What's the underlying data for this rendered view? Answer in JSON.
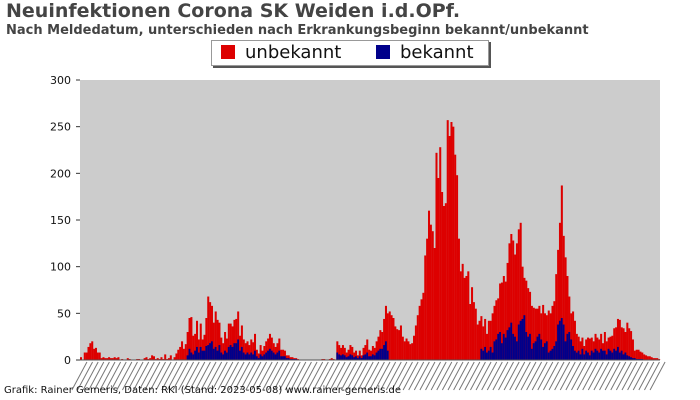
{
  "title": "Neuinfektionen Corona SK Weiden i.d.OPf.",
  "subtitle": "Nach Meldedatum, unterschieden nach Erkrankungsbeginn bekannt/unbekannt",
  "footer": "Grafik: Rainer Gemeris, Daten: RKI (Stand: 2023-05-08) www.rainer-gemeris.de",
  "colors": {
    "unbekannt": "#dd0000",
    "bekannt": "#00008b",
    "plot_background": "#cccccc",
    "page_background": "#ffffff"
  },
  "chart_data": {
    "type": "bar",
    "stacked": true,
    "title": "Neuinfektionen Corona SK Weiden i.d.OPf.",
    "subtitle": "Nach Meldedatum, unterschieden nach Erkrankungsbeginn bekannt/unbekannt",
    "xlabel": "",
    "ylabel": "",
    "ylim": [
      0,
      300
    ],
    "yticks": [
      0,
      50,
      100,
      150,
      200,
      250,
      300
    ],
    "grid": false,
    "legend_position": "top",
    "x_tick_labels_legible": false,
    "categories_note": "x-axis date labels are dense and illegible",
    "series": [
      {
        "name": "unbekannt",
        "color": "#dd0000",
        "values": [
          3,
          0,
          8,
          8,
          14,
          18,
          20,
          12,
          13,
          8,
          8,
          2,
          3,
          2,
          2,
          3,
          2,
          2,
          3,
          2,
          3,
          0,
          1,
          0,
          0,
          2,
          1,
          0,
          0,
          0,
          1,
          1,
          0,
          0,
          2,
          3,
          1,
          2,
          5,
          4,
          1,
          2,
          1,
          3,
          1,
          6,
          1,
          2,
          5,
          0,
          3,
          7,
          11,
          14,
          20,
          12,
          17,
          25,
          33,
          38,
          20,
          18,
          28,
          14,
          25,
          12,
          17,
          30,
          52,
          44,
          38,
          28,
          38,
          33,
          24,
          16,
          12,
          20,
          15,
          25,
          23,
          22,
          25,
          26,
          30,
          16,
          23,
          14,
          12,
          12,
          10,
          14,
          13,
          18,
          7,
          5,
          10,
          6,
          9,
          12,
          13,
          16,
          14,
          10,
          8,
          10,
          13,
          7,
          7,
          6,
          3,
          3,
          2,
          2,
          1,
          1,
          1,
          0,
          0,
          0,
          0,
          0,
          0,
          0,
          0,
          0,
          0,
          0,
          0,
          1,
          1,
          0,
          0,
          1,
          2,
          1,
          0,
          12,
          10,
          8,
          10,
          8,
          5,
          7,
          10,
          9,
          5,
          6,
          3,
          6,
          3,
          8,
          10,
          14,
          7,
          6,
          9,
          8,
          12,
          15,
          20,
          18,
          28,
          38,
          40,
          52,
          48,
          45,
          36,
          33,
          32,
          37,
          25,
          20,
          23,
          20,
          17,
          18,
          26,
          37,
          48,
          58,
          65,
          72,
          112,
          130,
          160,
          145,
          138,
          120,
          222,
          195,
          228,
          180,
          165,
          168,
          257,
          240,
          255,
          250,
          220,
          198,
          130,
          95,
          103,
          88,
          90,
          95,
          60,
          78,
          62,
          55,
          38,
          42,
          35,
          26,
          30,
          20,
          32,
          28,
          42,
          38,
          42,
          38,
          52,
          65,
          62,
          60,
          72,
          90,
          95,
          100,
          88,
          105,
          102,
          105,
          56,
          40,
          55,
          52,
          45,
          46,
          38,
          35,
          30,
          30,
          28,
          45,
          32,
          28,
          45,
          40,
          46,
          48,
          72,
          80,
          105,
          142,
          95,
          90,
          62,
          38,
          28,
          37,
          32,
          20,
          15,
          14,
          12,
          9,
          12,
          16,
          18,
          14,
          12,
          16,
          14,
          14,
          16,
          8,
          20,
          14,
          12,
          15,
          18,
          22,
          25,
          30,
          35,
          25,
          28,
          22,
          35,
          30,
          28,
          20,
          8,
          10,
          10,
          8,
          7,
          6,
          5,
          4,
          4,
          3,
          2,
          2,
          2,
          1
        ]
      },
      {
        "name": "bekannt",
        "color": "#00008b",
        "values": [
          0,
          0,
          0,
          0,
          0,
          0,
          0,
          0,
          0,
          0,
          0,
          0,
          0,
          0,
          0,
          0,
          0,
          0,
          0,
          0,
          0,
          0,
          0,
          0,
          0,
          0,
          0,
          0,
          0,
          0,
          0,
          0,
          0,
          0,
          0,
          0,
          0,
          0,
          0,
          0,
          0,
          0,
          0,
          0,
          0,
          0,
          0,
          0,
          0,
          0,
          0,
          0,
          0,
          0,
          0,
          0,
          0,
          5,
          12,
          8,
          6,
          10,
          14,
          8,
          14,
          10,
          10,
          15,
          16,
          18,
          20,
          12,
          14,
          10,
          16,
          8,
          6,
          10,
          8,
          14,
          16,
          14,
          18,
          18,
          22,
          10,
          14,
          8,
          6,
          8,
          6,
          8,
          6,
          10,
          4,
          2,
          6,
          4,
          6,
          8,
          10,
          12,
          10,
          8,
          6,
          8,
          10,
          4,
          4,
          4,
          2,
          2,
          1,
          1,
          1,
          1,
          0,
          0,
          0,
          0,
          0,
          0,
          0,
          0,
          0,
          0,
          0,
          0,
          0,
          0,
          0,
          0,
          0,
          0,
          0,
          0,
          0,
          8,
          6,
          5,
          6,
          5,
          3,
          4,
          6,
          5,
          3,
          4,
          2,
          4,
          2,
          5,
          6,
          8,
          4,
          4,
          6,
          5,
          8,
          10,
          12,
          12,
          16,
          20,
          10,
          0,
          0,
          0,
          0,
          0,
          0,
          0,
          0,
          0,
          0,
          0,
          0,
          0,
          0,
          0,
          0,
          0,
          0,
          0,
          0,
          0,
          0,
          0,
          0,
          0,
          0,
          0,
          0,
          0,
          0,
          0,
          0,
          0,
          0,
          0,
          0,
          0,
          0,
          0,
          0,
          0,
          0,
          0,
          0,
          0,
          0,
          0,
          0,
          0,
          12,
          10,
          14,
          8,
          10,
          14,
          8,
          20,
          22,
          28,
          30,
          18,
          28,
          24,
          32,
          35,
          40,
          28,
          25,
          20,
          38,
          42,
          44,
          48,
          30,
          25,
          28,
          12,
          18,
          20,
          25,
          28,
          22,
          14,
          18,
          20,
          8,
          10,
          12,
          15,
          20,
          38,
          42,
          45,
          38,
          20,
          28,
          30,
          22,
          15,
          10,
          8,
          10,
          6,
          12,
          6,
          10,
          8,
          5,
          10,
          8,
          12,
          10,
          8,
          12,
          10,
          10,
          6,
          12,
          10,
          8,
          12,
          10,
          14,
          8,
          10,
          6,
          8,
          5,
          4,
          3,
          2,
          2,
          1,
          1,
          1,
          1,
          0,
          0,
          0,
          0,
          0,
          0,
          0,
          0,
          0,
          0
        ]
      }
    ]
  }
}
